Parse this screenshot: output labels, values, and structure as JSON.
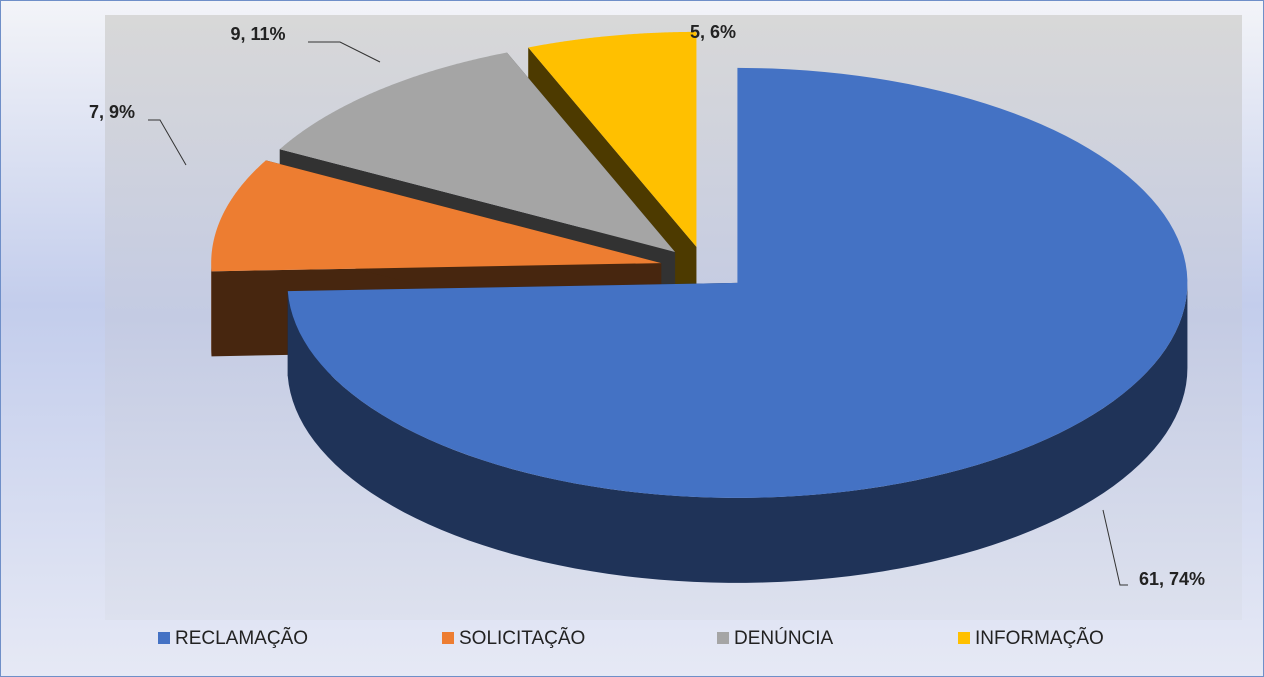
{
  "chart_data": {
    "type": "pie",
    "categories": [
      "RECLAMAÇÃO",
      "SOLICITAÇÃO",
      "DENÚNCIA",
      "INFORMAÇÃO"
    ],
    "values": [
      61,
      7,
      9,
      5
    ],
    "value_labels": [
      "61, 74%",
      "7, 9%",
      "9, 11%",
      "5, 6%"
    ],
    "colors": [
      "#4472c4",
      "#ed7d31",
      "#a5a5a5",
      "#ffc000"
    ],
    "legend": "bottom"
  }
}
